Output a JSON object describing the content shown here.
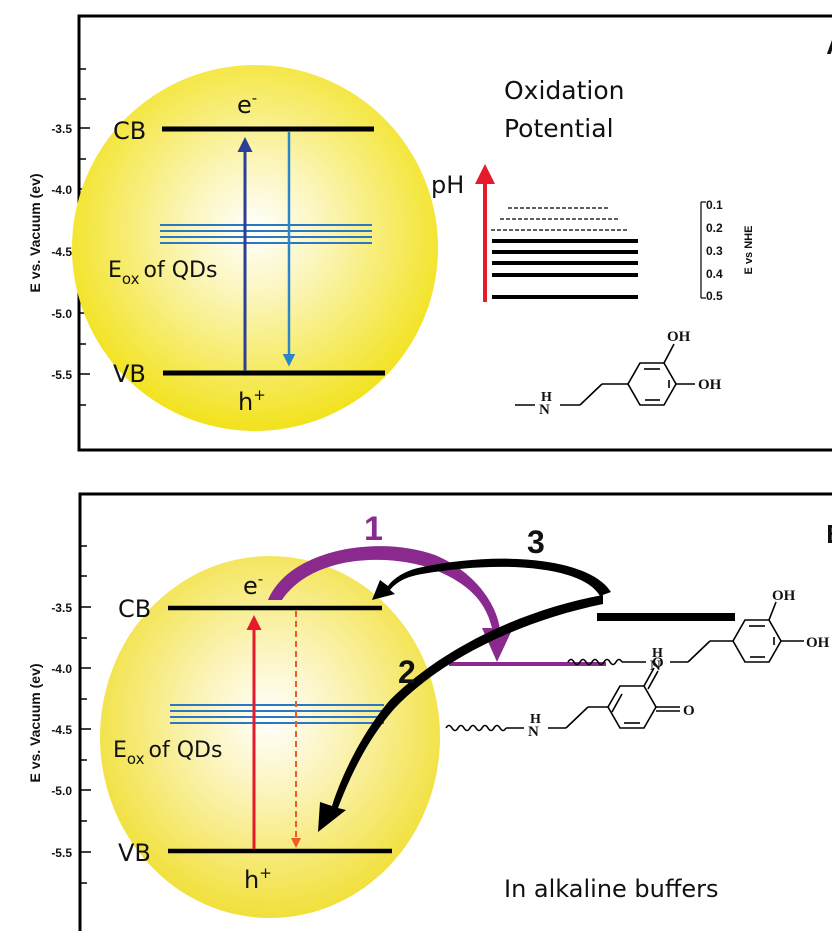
{
  "colors": {
    "sphere": "#f2e21c",
    "band": "#000000",
    "qd_levels": "#2a78c2",
    "excite_A": "#2c3f97",
    "relax_A": "#2a86c8",
    "excite_B": "#e51a2a",
    "relax_B": "#f05a24",
    "ph_arrow": "#e51a2a",
    "path1": "#8b2a8e",
    "path23": "#000000",
    "quinone_level": "#8b2a8e"
  },
  "icons": {
    "curved_arrow_icon": "curved-arrow-icon"
  },
  "panel_a": {
    "letter": "A",
    "y_axis_label": "E vs. Vacuum (ev)",
    "y_ticks": [
      "-3.5",
      "-4.0",
      "-4.5",
      "-5.0",
      "-5.5"
    ],
    "cb": "CB",
    "vb": "VB",
    "electron": "e",
    "electron_sup": "-",
    "hole": "h",
    "hole_sup": "+",
    "eox_main": "E",
    "eox_sub": "ox",
    "eox_rest": "of QDs",
    "title_line1": "Oxidation",
    "title_line2": "Potential",
    "ph_label": "pH",
    "nhe_ticks": [
      "0.1",
      "0.2",
      "0.3",
      "0.4",
      "0.5"
    ],
    "nhe_label": "E vs NHE",
    "molecule": {
      "oh_top": "OH",
      "oh_right": "OH",
      "nh_h": "H",
      "nh_n": "N"
    }
  },
  "panel_b": {
    "letter": "B",
    "y_axis_label": "E vs. Vacuum (ev)",
    "y_ticks": [
      "-3.5",
      "-4.0",
      "-4.5",
      "-5.0",
      "-5.5"
    ],
    "cb": "CB",
    "vb": "VB",
    "electron": "e",
    "electron_sup": "-",
    "hole": "h",
    "hole_sup": "+",
    "eox_main": "E",
    "eox_sub": "ox",
    "eox_rest": "of QDs",
    "path_labels": [
      "1",
      "2",
      "3"
    ],
    "caption": "In alkaline buffers",
    "catechol": {
      "oh_top": "OH",
      "oh_right": "OH",
      "nh_h": "H",
      "nh_n": "N"
    },
    "quinone": {
      "o_top": "O",
      "o_right": "O",
      "nh_h": "H",
      "nh_n": "N"
    }
  }
}
